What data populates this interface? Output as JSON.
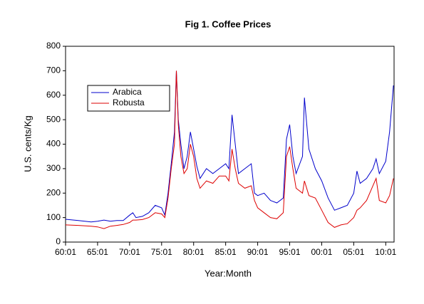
{
  "chart_data": {
    "type": "line",
    "title": "Fig 1. Coffee Prices",
    "xlabel": "Year:Month",
    "ylabel": "U.S. cents/Kg",
    "x": [
      1960,
      1962,
      1964,
      1965,
      1966,
      1967,
      1968,
      1969,
      1970,
      1970.5,
      1971,
      1972,
      1973,
      1974,
      1975,
      1975.5,
      1976,
      1976.5,
      1977,
      1977.3,
      1977.6,
      1978,
      1978.5,
      1979,
      1979.5,
      1980,
      1980.5,
      1981,
      1982,
      1983,
      1984,
      1985,
      1985.5,
      1986,
      1986.5,
      1987,
      1988,
      1989,
      1989.5,
      1990,
      1991,
      1992,
      1993,
      1994,
      1994.5,
      1995,
      1995.5,
      1996,
      1997,
      1997.3,
      1998,
      1999,
      2000,
      2001,
      2002,
      2003,
      2004,
      2005,
      2005.5,
      2006,
      2007,
      2008,
      2008.5,
      2009,
      2010,
      2010.6,
      2011.2
    ],
    "series": [
      {
        "name": "Arabica",
        "color": "#0000cc",
        "values": [
          93,
          88,
          82,
          85,
          90,
          85,
          88,
          88,
          110,
          120,
          100,
          105,
          120,
          150,
          140,
          110,
          200,
          320,
          450,
          700,
          500,
          400,
          300,
          350,
          450,
          380,
          310,
          260,
          300,
          280,
          300,
          320,
          300,
          520,
          400,
          280,
          300,
          320,
          200,
          190,
          200,
          170,
          160,
          180,
          420,
          480,
          350,
          280,
          350,
          590,
          380,
          300,
          250,
          180,
          130,
          140,
          150,
          200,
          290,
          240,
          260,
          300,
          340,
          280,
          330,
          450,
          640
        ]
      },
      {
        "name": "Robusta",
        "color": "#dd0000",
        "values": [
          70,
          68,
          65,
          62,
          55,
          65,
          68,
          72,
          80,
          90,
          90,
          92,
          100,
          120,
          115,
          100,
          180,
          300,
          400,
          700,
          480,
          350,
          280,
          300,
          400,
          350,
          260,
          220,
          250,
          240,
          270,
          270,
          250,
          380,
          300,
          240,
          220,
          230,
          170,
          140,
          120,
          100,
          95,
          120,
          350,
          390,
          300,
          220,
          200,
          250,
          190,
          180,
          130,
          80,
          60,
          70,
          75,
          100,
          130,
          140,
          170,
          230,
          260,
          170,
          160,
          190,
          260
        ]
      }
    ],
    "xlim": [
      1960,
      2011.3
    ],
    "xticks": [
      {
        "value": 1960,
        "label": "60:01"
      },
      {
        "value": 1965,
        "label": "65:01"
      },
      {
        "value": 1970,
        "label": "70:01"
      },
      {
        "value": 1975,
        "label": "75:01"
      },
      {
        "value": 1980,
        "label": "80:01"
      },
      {
        "value": 1985,
        "label": "85:01"
      },
      {
        "value": 1990,
        "label": "90:01"
      },
      {
        "value": 1995,
        "label": "95:01"
      },
      {
        "value": 2000,
        "label": "00:01"
      },
      {
        "value": 2005,
        "label": "05:01"
      },
      {
        "value": 2010,
        "label": "10:01"
      }
    ],
    "ylim": [
      0,
      800
    ],
    "yticks": [
      0,
      100,
      200,
      300,
      400,
      500,
      600,
      700,
      800
    ],
    "legend": "upper left"
  }
}
